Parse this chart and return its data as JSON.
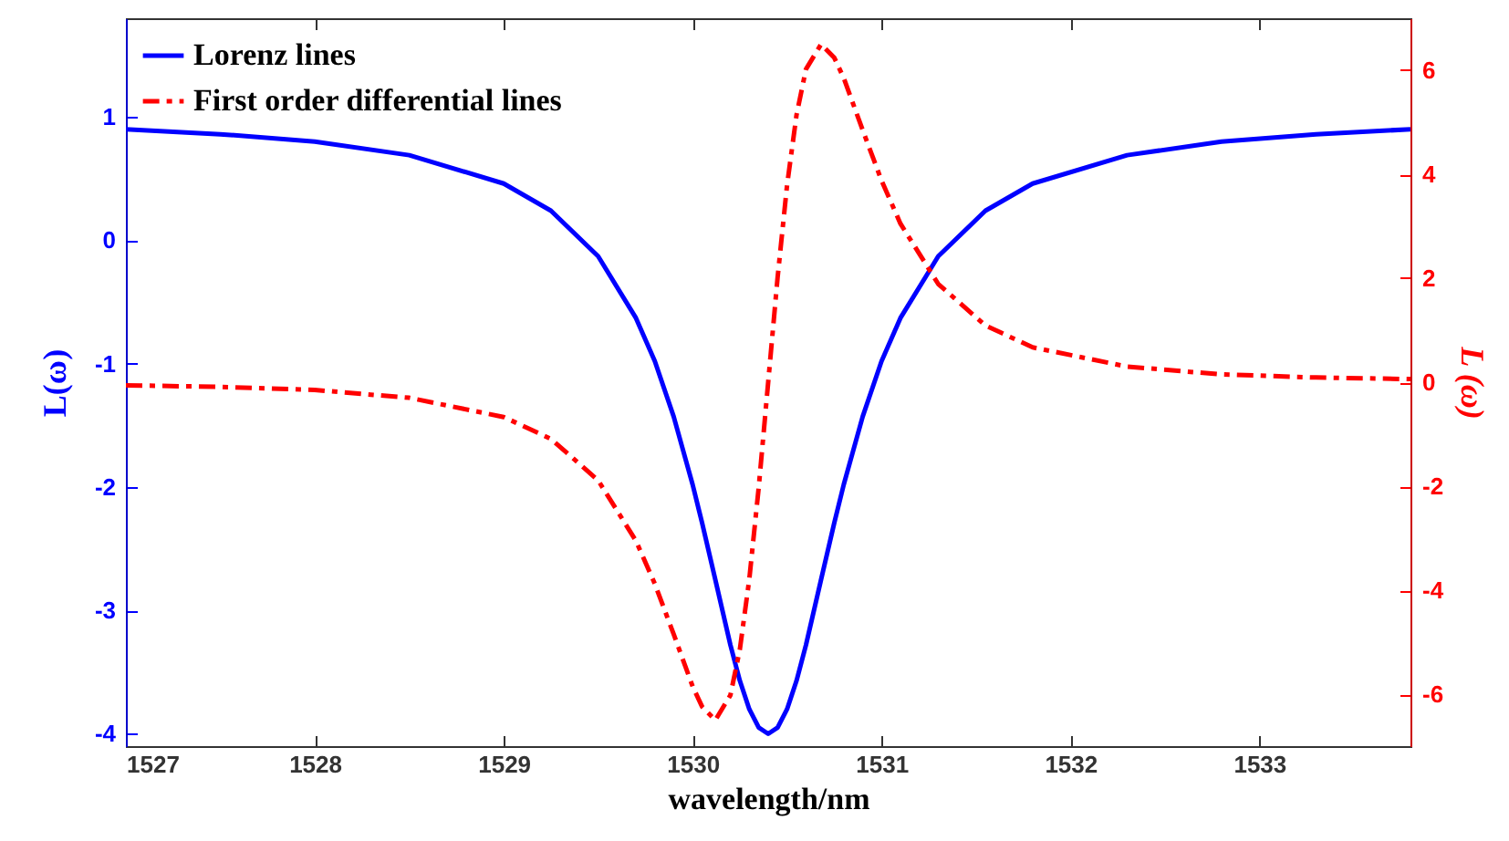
{
  "chart_data": {
    "type": "line",
    "xlabel": "wavelength/nm",
    "ylabel": "L(ω)",
    "y2label": "L (ω)",
    "xlim": [
      1527,
      1533.8
    ],
    "xticks": [
      1527,
      1528,
      1529,
      1530,
      1531,
      1532,
      1533
    ],
    "ylim": [
      -4.1,
      1.8
    ],
    "yticks": [
      -4,
      -3,
      -2,
      -1,
      0,
      1
    ],
    "y2lim": [
      -7,
      7
    ],
    "y2ticks": [
      -6,
      -4,
      -2,
      0,
      2,
      4,
      6
    ],
    "grid": false,
    "legend": "top left",
    "x": [
      1527,
      1527.5,
      1528,
      1528.5,
      1529,
      1529.25,
      1529.5,
      1529.7,
      1529.8,
      1529.9,
      1530,
      1530.05,
      1530.12,
      1530.2,
      1530.25,
      1530.3,
      1530.35,
      1530.4,
      1530.45,
      1530.5,
      1530.55,
      1530.6,
      1530.68,
      1530.75,
      1530.8,
      1530.9,
      1531,
      1531.1,
      1531.3,
      1531.55,
      1531.8,
      1532.3,
      1532.8,
      1533.3,
      1533.8
    ],
    "series": [
      {
        "name": "Lorenz lines",
        "color": "#0000ff",
        "line_style": "solid",
        "values": [
          0.9,
          0.86,
          0.8,
          0.69,
          0.46,
          0.24,
          -0.13,
          -0.63,
          -0.98,
          -1.43,
          -1.98,
          -2.29,
          -2.75,
          -3.28,
          -3.57,
          -3.8,
          -3.95,
          -4.0,
          -3.95,
          -3.8,
          -3.57,
          -3.28,
          -2.75,
          -2.29,
          -1.98,
          -1.43,
          -0.98,
          -0.63,
          -0.13,
          0.24,
          0.46,
          0.69,
          0.8,
          0.86,
          0.9
        ]
      },
      {
        "name": "First order differential lines",
        "color": "#ff0000",
        "line_style": "dashed",
        "axis": "y2",
        "values": [
          -0.06,
          -0.09,
          -0.15,
          -0.3,
          -0.67,
          -1.09,
          -1.89,
          -3.05,
          -3.88,
          -4.85,
          -5.85,
          -6.24,
          -6.5,
          -6.02,
          -5.14,
          -3.79,
          -2.02,
          0,
          2.02,
          3.79,
          5.14,
          6.02,
          6.5,
          6.24,
          5.85,
          4.85,
          3.88,
          3.05,
          1.89,
          1.09,
          0.67,
          0.3,
          0.15,
          0.09,
          0.06
        ]
      }
    ]
  }
}
